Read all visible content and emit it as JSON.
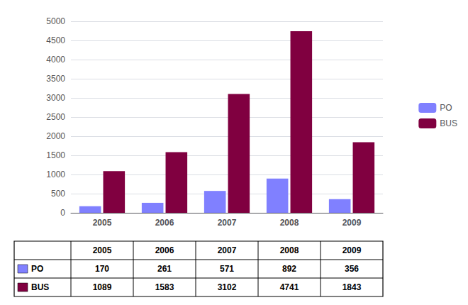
{
  "chart_data": {
    "type": "bar",
    "categories": [
      "2005",
      "2006",
      "2007",
      "2008",
      "2009"
    ],
    "series": [
      {
        "name": "PO",
        "color": "#8080ff",
        "values": [
          170,
          261,
          571,
          892,
          356
        ]
      },
      {
        "name": "BUS",
        "color": "#800040",
        "values": [
          1089,
          1583,
          3102,
          4741,
          1843
        ]
      }
    ],
    "ylim": [
      0,
      5000
    ],
    "yticks": [
      0,
      500,
      1000,
      1500,
      2000,
      2500,
      3000,
      3500,
      4000,
      4500,
      5000
    ],
    "grid": true,
    "legend": "right"
  }
}
